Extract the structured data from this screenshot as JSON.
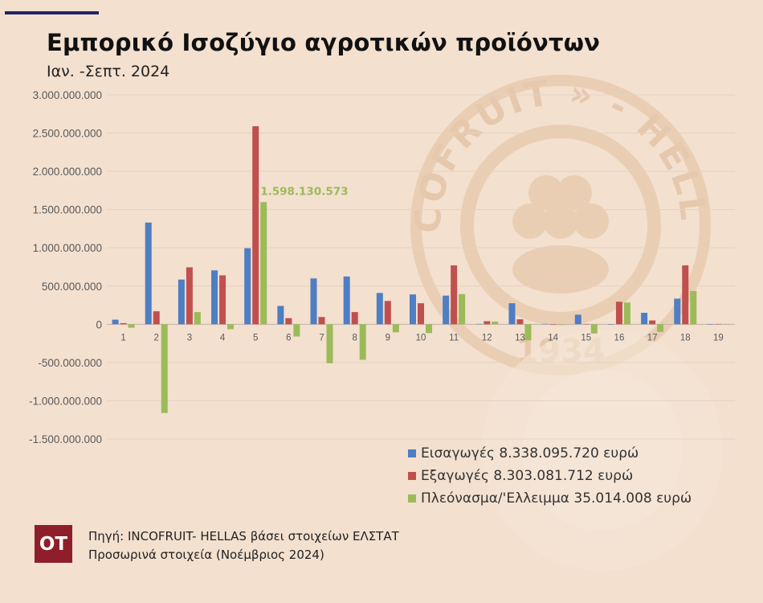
{
  "header": {
    "title": "Εμπορικό Ισοζύγιο αγροτικών προϊόντων",
    "subtitle": "Ιαν. -Σεπτ. 2024"
  },
  "watermark": {
    "top_text": "INCOFRUIT » - HELLAS",
    "year": "1934"
  },
  "footer": {
    "logo": "OT",
    "source": "Πηγή: INCOFRUIT- HELLAS βάσει στοιχείων ΕΛΣΤΑΤ",
    "note": "Προσωρινά στοιχεία (Νοέμβριος 2024)"
  },
  "colors": {
    "imports": "#4e7ec3",
    "exports": "#c0504d",
    "balance": "#9bbb59",
    "logo_bg": "#8e1f2a",
    "background": "#f3e0cf"
  },
  "chart_data": {
    "type": "bar",
    "categories": [
      "1",
      "2",
      "3",
      "4",
      "5",
      "6",
      "7",
      "8",
      "9",
      "10",
      "11",
      "12",
      "13",
      "14",
      "15",
      "16",
      "17",
      "18",
      "19"
    ],
    "series": [
      {
        "name": "Εισαγωγές 8.338.095.720 ευρώ",
        "values": [
          60000000,
          1330000000,
          585000000,
          705000000,
          995000000,
          240000000,
          600000000,
          625000000,
          410000000,
          390000000,
          375000000,
          5000000,
          275000000,
          5000000,
          125000000,
          0,
          150000000,
          335000000,
          0
        ]
      },
      {
        "name": "Εξαγωγές 8.303.081.712 ευρώ",
        "values": [
          15000000,
          170000000,
          745000000,
          640000000,
          2590000000,
          80000000,
          95000000,
          160000000,
          305000000,
          275000000,
          770000000,
          40000000,
          65000000,
          0,
          5000000,
          295000000,
          50000000,
          770000000,
          5000000
        ]
      },
      {
        "name": "Πλεόνασμα/'Ελλειμμα 35.014.008 ευρώ",
        "values": [
          -45000000,
          -1160000000,
          160000000,
          -65000000,
          1598130573,
          -160000000,
          -510000000,
          -465000000,
          -105000000,
          -115000000,
          395000000,
          35000000,
          -210000000,
          -5000000,
          -120000000,
          285000000,
          -100000000,
          435000000,
          5000000
        ]
      }
    ],
    "ylim": [
      -1500000000,
      3000000000
    ],
    "yticks": [
      3000000000,
      2500000000,
      2000000000,
      1500000000,
      1000000000,
      500000000,
      0,
      -500000000,
      -1000000000,
      -1500000000
    ],
    "ytick_labels": [
      "3.000.000.000",
      "2.500.000.000",
      "2.000.000.000",
      "1.500.000.000",
      "1.000.000.000",
      "500.000.000",
      "0",
      "-500.000.000",
      "-1.000.000.000",
      "-1.500.000.000"
    ],
    "grid": true,
    "legend_position": "bottom-right",
    "annotation": {
      "series": 2,
      "category": "5",
      "text": "1.598.130.573"
    }
  }
}
